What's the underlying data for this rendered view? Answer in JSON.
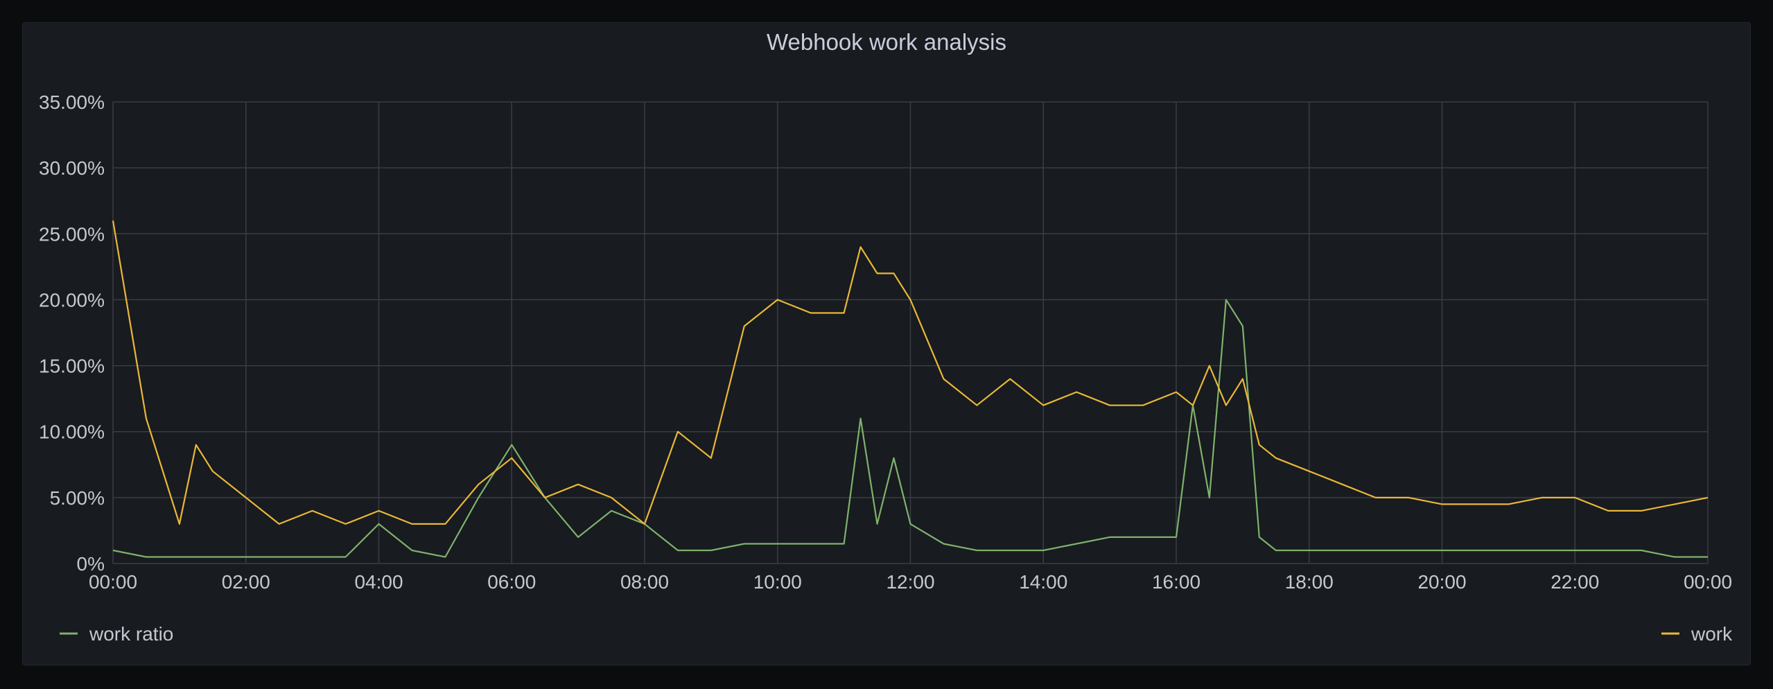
{
  "panel": {
    "title": "Webhook work analysis"
  },
  "colors": {
    "work": "#eab839",
    "work_ratio": "#7eb26d",
    "grid": "#3a3d44",
    "background": "#181b1f"
  },
  "chart_data": {
    "type": "line",
    "title": "Webhook work analysis",
    "xlabel": "",
    "ylabel": "",
    "xlim": [
      "00:00",
      "24:00"
    ],
    "ylim": [
      0,
      35
    ],
    "y_ticks": [
      "0%",
      "5.00%",
      "10.00%",
      "15.00%",
      "20.00%",
      "25.00%",
      "30.00%",
      "35.00%"
    ],
    "x_ticks": [
      "00:00",
      "02:00",
      "04:00",
      "06:00",
      "08:00",
      "10:00",
      "12:00",
      "14:00",
      "16:00",
      "18:00",
      "20:00",
      "22:00",
      "00:00"
    ],
    "grid": true,
    "legend_position": "bottom",
    "x_hours": [
      0,
      0.5,
      1,
      1.25,
      1.5,
      2,
      2.5,
      3,
      3.5,
      4,
      4.5,
      5,
      5.5,
      6,
      6.5,
      7,
      7.5,
      8,
      8.5,
      9,
      9.5,
      10,
      10.5,
      11,
      11.25,
      11.5,
      11.75,
      12,
      12.5,
      13,
      13.5,
      14,
      14.5,
      15,
      15.5,
      16,
      16.25,
      16.5,
      16.75,
      17,
      17.25,
      17.5,
      18,
      18.5,
      19,
      19.5,
      20,
      20.5,
      21,
      21.5,
      22,
      22.5,
      23,
      23.5,
      24
    ],
    "series": [
      {
        "name": "work ratio",
        "color": "#7eb26d",
        "values": [
          1,
          0.5,
          0.5,
          0.5,
          0.5,
          0.5,
          0.5,
          0.5,
          0.5,
          3,
          1,
          0.5,
          5,
          9,
          5,
          2,
          4,
          3,
          1,
          1,
          1.5,
          1.5,
          1.5,
          1.5,
          11,
          3,
          8,
          3,
          1.5,
          1,
          1,
          1,
          1.5,
          2,
          2,
          2,
          12,
          5,
          20,
          18,
          2,
          1,
          1,
          1,
          1,
          1,
          1,
          1,
          1,
          1,
          1,
          1,
          1,
          0.5,
          0.5
        ]
      },
      {
        "name": "work",
        "color": "#eab839",
        "values": [
          26,
          11,
          3,
          9,
          7,
          5,
          3,
          4,
          3,
          4,
          3,
          3,
          6,
          8,
          5,
          6,
          5,
          3,
          10,
          8,
          18,
          20,
          19,
          19,
          24,
          22,
          22,
          20,
          14,
          12,
          14,
          12,
          13,
          12,
          12,
          13,
          12,
          15,
          12,
          14,
          9,
          8,
          7,
          6,
          5,
          5,
          4.5,
          4.5,
          4.5,
          5,
          5,
          4,
          4,
          4.5,
          5
        ]
      }
    ]
  },
  "legend": {
    "left_label": "work ratio",
    "right_label": "work"
  }
}
